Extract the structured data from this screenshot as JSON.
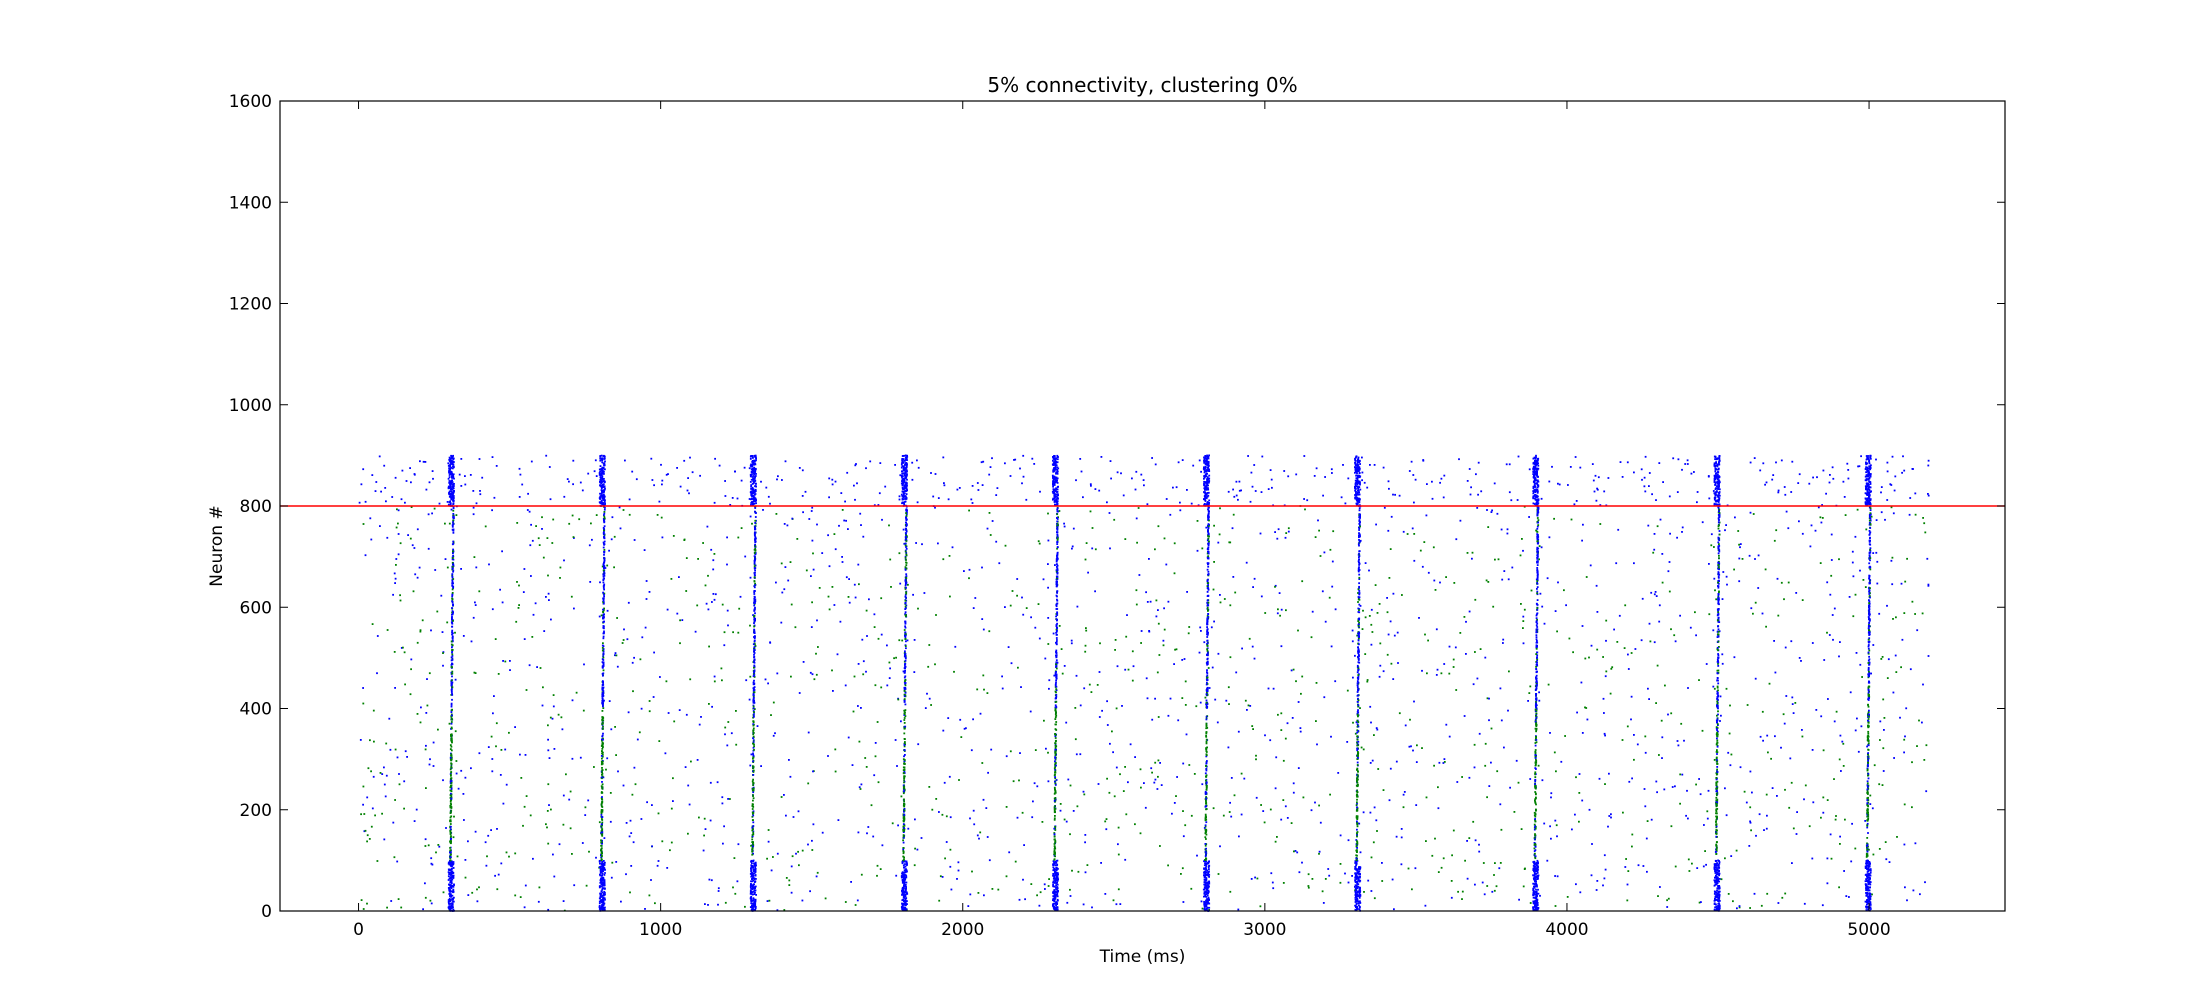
{
  "chart_data": {
    "type": "scatter",
    "title": "5% connectivity, clustering 0%",
    "xlabel": "Time (ms)",
    "ylabel": "Neuron #",
    "xlim": [
      -260,
      5450
    ],
    "ylim": [
      0,
      1600
    ],
    "xticks": [
      0,
      1000,
      2000,
      3000,
      4000,
      5000
    ],
    "yticks": [
      0,
      200,
      400,
      600,
      800,
      1000,
      1200,
      1400,
      1600
    ],
    "grid": false,
    "legend": "none",
    "reference_line": {
      "y": 800,
      "color": "#ff0000"
    },
    "background_spikes": {
      "t_start": 0,
      "t_end": 5200,
      "neuron_max": 900,
      "count": 2600
    },
    "burst_times": [
      310,
      810,
      1310,
      1810,
      2310,
      2810,
      3310,
      3900,
      4500,
      5000
    ],
    "series": [
      {
        "color": "#0000ff",
        "neuron_ranges": [
          [
            0,
            100
          ],
          [
            400,
            800
          ],
          [
            800,
            900
          ]
        ],
        "role": "blue spikes"
      },
      {
        "color": "#008000",
        "neuron_ranges": [
          [
            100,
            400
          ],
          [
            100,
            800
          ]
        ],
        "role": "green spikes"
      }
    ],
    "colors": {
      "blue": "#0000ff",
      "green": "#008000",
      "red": "#ff0000",
      "axis": "#000000"
    }
  }
}
